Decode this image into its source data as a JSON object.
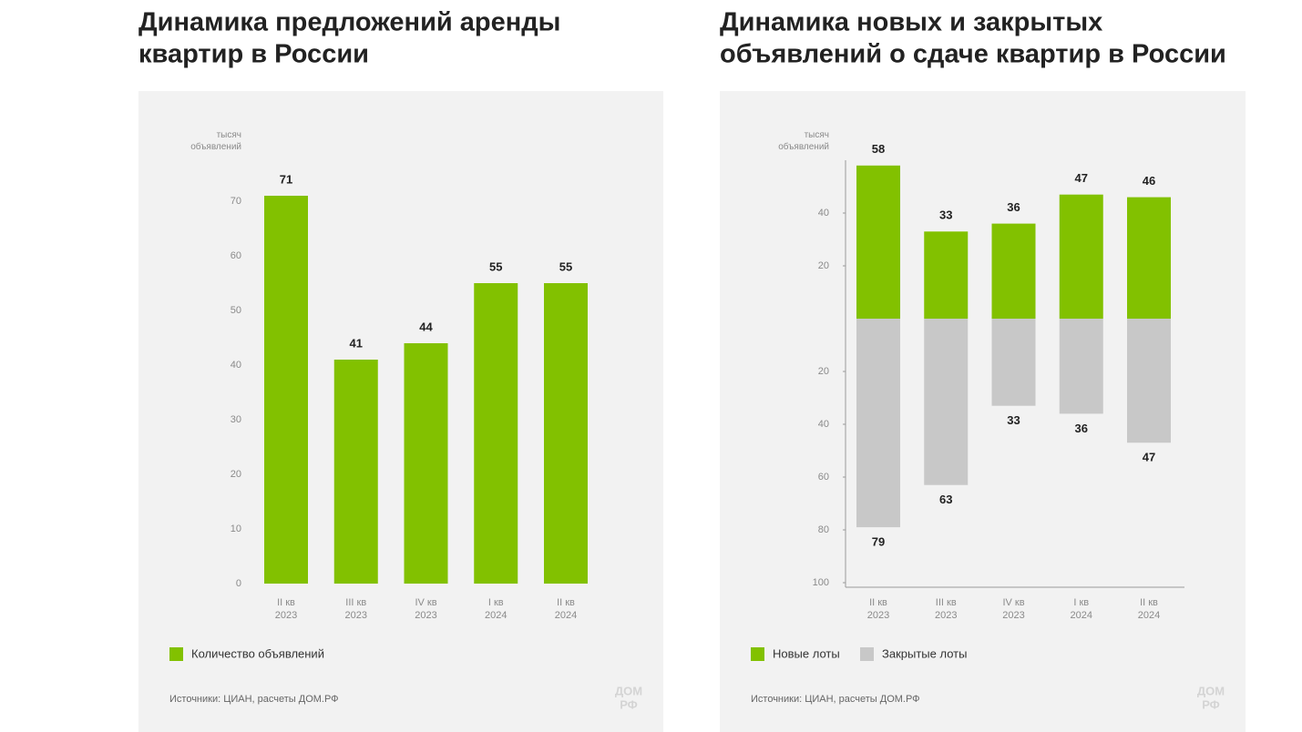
{
  "chart_data": [
    {
      "type": "bar",
      "title": [
        "Динамика предложений аренды",
        "квартир в России"
      ],
      "y_label": "тысяч объявлений",
      "categories": [
        "II кв 2023",
        "III кв 2023",
        "IV кв 2023",
        "I кв 2024",
        "II кв 2024"
      ],
      "series": [
        {
          "name": "Количество объявлений",
          "color": "#82c100",
          "values": [
            71,
            41,
            44,
            55,
            55
          ]
        }
      ],
      "ylim": [
        0,
        77
      ],
      "yticks": [
        0,
        10,
        20,
        30,
        40,
        50,
        60,
        70
      ],
      "axis_lines": false,
      "source": "Источники: ЦИАН, расчеты ДОМ.РФ",
      "logo": [
        "ДОМ",
        "РФ"
      ]
    },
    {
      "type": "bar",
      "title": [
        "Динамика новых и закрытых",
        "объявлений о сдаче квартир в России"
      ],
      "y_label": "тысяч объявлений",
      "categories": [
        "II кв 2023",
        "III кв 2023",
        "IV кв 2023",
        "I кв 2024",
        "II кв 2024"
      ],
      "series": [
        {
          "name": "Новые лоты",
          "color": "#82c100",
          "values": [
            58,
            33,
            36,
            47,
            46
          ]
        },
        {
          "name": "Закрытые лоты",
          "color": "#c8c8c8",
          "values": [
            -79,
            -63,
            -33,
            -36,
            -47
          ],
          "value_labels": [
            "79",
            "63",
            "33",
            "36",
            "47"
          ]
        }
      ],
      "ylim": [
        -100,
        60
      ],
      "yticks": [
        {
          "value": -100,
          "label": "100"
        },
        {
          "value": -80,
          "label": "80"
        },
        {
          "value": -60,
          "label": "60"
        },
        {
          "value": -40,
          "label": "40"
        },
        {
          "value": -20,
          "label": "20"
        },
        20,
        40
      ],
      "axis_lines": true,
      "source": "Источники: ЦИАН, расчеты ДОМ.РФ",
      "logo": [
        "ДОМ",
        "РФ"
      ]
    }
  ]
}
